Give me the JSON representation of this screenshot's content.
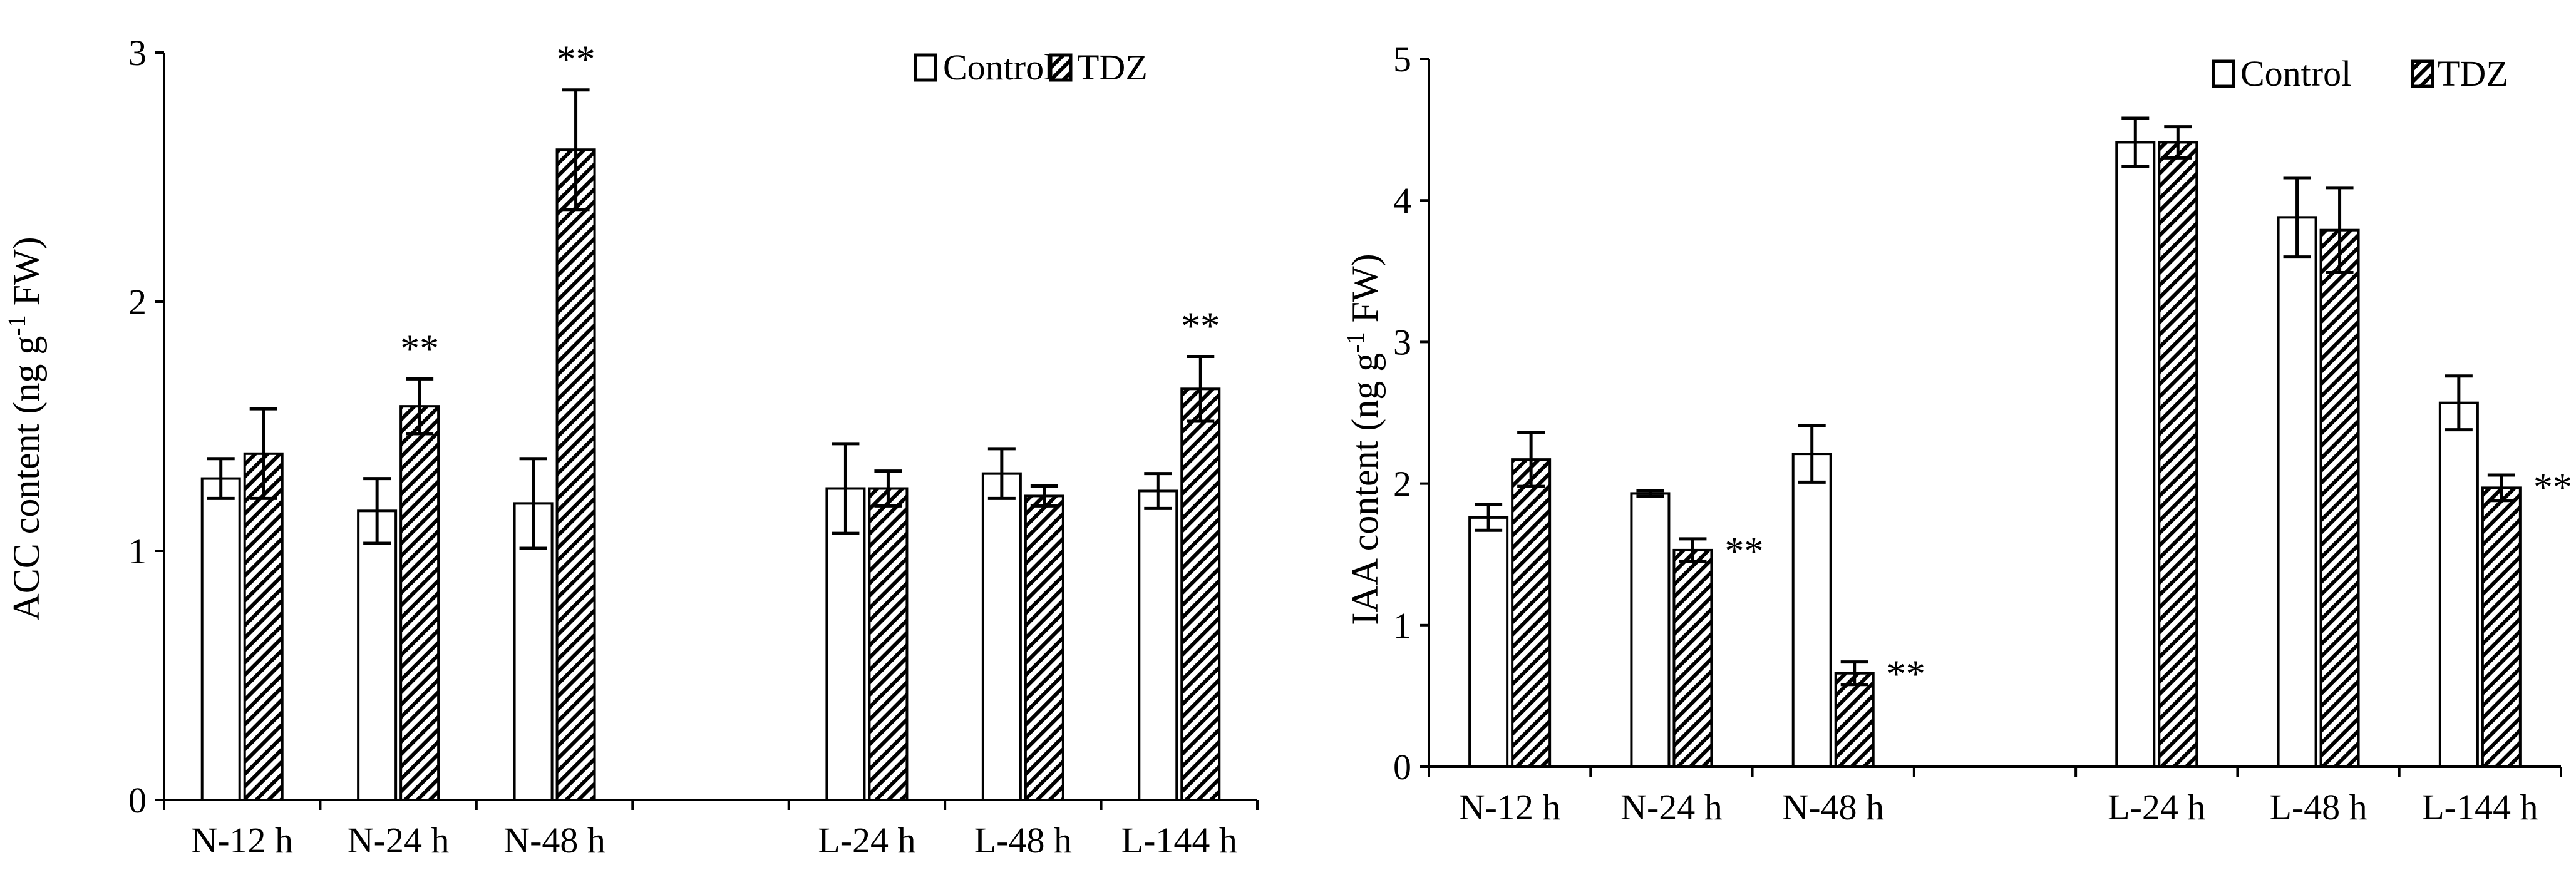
{
  "chart_data": [
    {
      "type": "bar",
      "ylabel": "ACC content (ng g",
      "ylabel_sup": "-1",
      "ylabel_end": " FW)",
      "ylim": [
        0,
        3
      ],
      "yticks": [
        0,
        1,
        2,
        3
      ],
      "categories": [
        "N-12 h",
        "N-24 h",
        "N-48 h",
        "",
        "L-24 h",
        "L-48 h",
        "L-144 h"
      ],
      "legend_position": "top-right",
      "significance_label": "**",
      "series": [
        {
          "name": "Control",
          "values": [
            1.29,
            1.16,
            1.19,
            null,
            1.25,
            1.31,
            1.24
          ],
          "errors": [
            0.08,
            0.13,
            0.18,
            null,
            0.18,
            0.1,
            0.07
          ],
          "sig": [
            false,
            false,
            false,
            false,
            false,
            false,
            false
          ]
        },
        {
          "name": "TDZ",
          "values": [
            1.39,
            1.58,
            2.61,
            null,
            1.25,
            1.22,
            1.65
          ],
          "errors": [
            0.18,
            0.11,
            0.24,
            null,
            0.07,
            0.04,
            0.13
          ],
          "sig": [
            false,
            true,
            true,
            false,
            false,
            false,
            true
          ]
        }
      ]
    },
    {
      "type": "bar",
      "ylabel": "IAA content (ng g",
      "ylabel_sup": "-1",
      "ylabel_end": " FW)",
      "ylim": [
        0,
        5
      ],
      "yticks": [
        0,
        1,
        2,
        3,
        4,
        5
      ],
      "categories": [
        "N-12 h",
        "N-24 h",
        "N-48 h",
        "",
        "L-24 h",
        "L-48 h",
        "L-144 h"
      ],
      "legend_position": "top-right",
      "significance_label": "**",
      "series": [
        {
          "name": "Control",
          "values": [
            1.76,
            1.93,
            2.21,
            null,
            4.41,
            3.88,
            2.57
          ],
          "errors": [
            0.09,
            0.02,
            0.2,
            null,
            0.17,
            0.28,
            0.19
          ],
          "sig": [
            false,
            false,
            false,
            false,
            false,
            false,
            false
          ]
        },
        {
          "name": "TDZ",
          "values": [
            2.17,
            1.53,
            0.66,
            null,
            4.41,
            3.79,
            1.97
          ],
          "errors": [
            0.19,
            0.08,
            0.08,
            null,
            0.11,
            0.3,
            0.09
          ],
          "sig": [
            false,
            true,
            true,
            false,
            false,
            false,
            true
          ]
        }
      ]
    }
  ]
}
